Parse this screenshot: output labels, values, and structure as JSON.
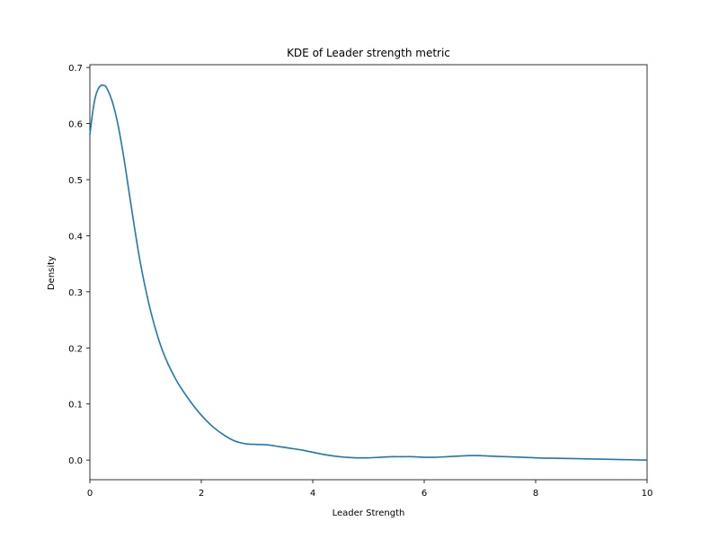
{
  "chart_data": {
    "type": "line",
    "title": "KDE of Leader strength metric",
    "xlabel": "Leader Strength",
    "ylabel": "Density",
    "xlim": [
      0,
      10
    ],
    "ylim": [
      -0.035,
      0.705
    ],
    "grid": false,
    "x_ticks": [
      0,
      2,
      4,
      6,
      8,
      10
    ],
    "x_tick_labels": [
      "0",
      "2",
      "4",
      "6",
      "8",
      "10"
    ],
    "y_ticks": [
      0.0,
      0.1,
      0.2,
      0.3,
      0.4,
      0.5,
      0.6,
      0.7
    ],
    "y_tick_labels": [
      "0.0",
      "0.1",
      "0.2",
      "0.3",
      "0.4",
      "0.5",
      "0.6",
      "0.7"
    ],
    "series": [
      {
        "color": "#1f77b4",
        "x": [
          0.0,
          0.05,
          0.1,
          0.15,
          0.2,
          0.25,
          0.3,
          0.4,
          0.5,
          0.6,
          0.7,
          0.8,
          0.9,
          1.0,
          1.1,
          1.2,
          1.3,
          1.4,
          1.5,
          1.6,
          1.8,
          2.0,
          2.2,
          2.4,
          2.6,
          2.8,
          3.0,
          3.2,
          3.4,
          3.6,
          3.8,
          4.0,
          4.2,
          4.4,
          4.6,
          4.8,
          5.0,
          5.2,
          5.4,
          5.6,
          5.8,
          6.0,
          6.2,
          6.4,
          6.6,
          6.8,
          7.0,
          7.2,
          7.5,
          8.0,
          8.5,
          9.0,
          9.5,
          10.0
        ],
        "y": [
          0.58,
          0.62,
          0.648,
          0.662,
          0.668,
          0.668,
          0.664,
          0.64,
          0.6,
          0.545,
          0.48,
          0.415,
          0.355,
          0.305,
          0.262,
          0.226,
          0.196,
          0.172,
          0.152,
          0.134,
          0.105,
          0.08,
          0.06,
          0.045,
          0.034,
          0.029,
          0.028,
          0.027,
          0.024,
          0.021,
          0.018,
          0.014,
          0.01,
          0.007,
          0.005,
          0.004,
          0.004,
          0.005,
          0.006,
          0.006,
          0.006,
          0.005,
          0.005,
          0.006,
          0.007,
          0.008,
          0.008,
          0.007,
          0.006,
          0.004,
          0.003,
          0.002,
          0.001,
          0.0
        ]
      }
    ]
  }
}
